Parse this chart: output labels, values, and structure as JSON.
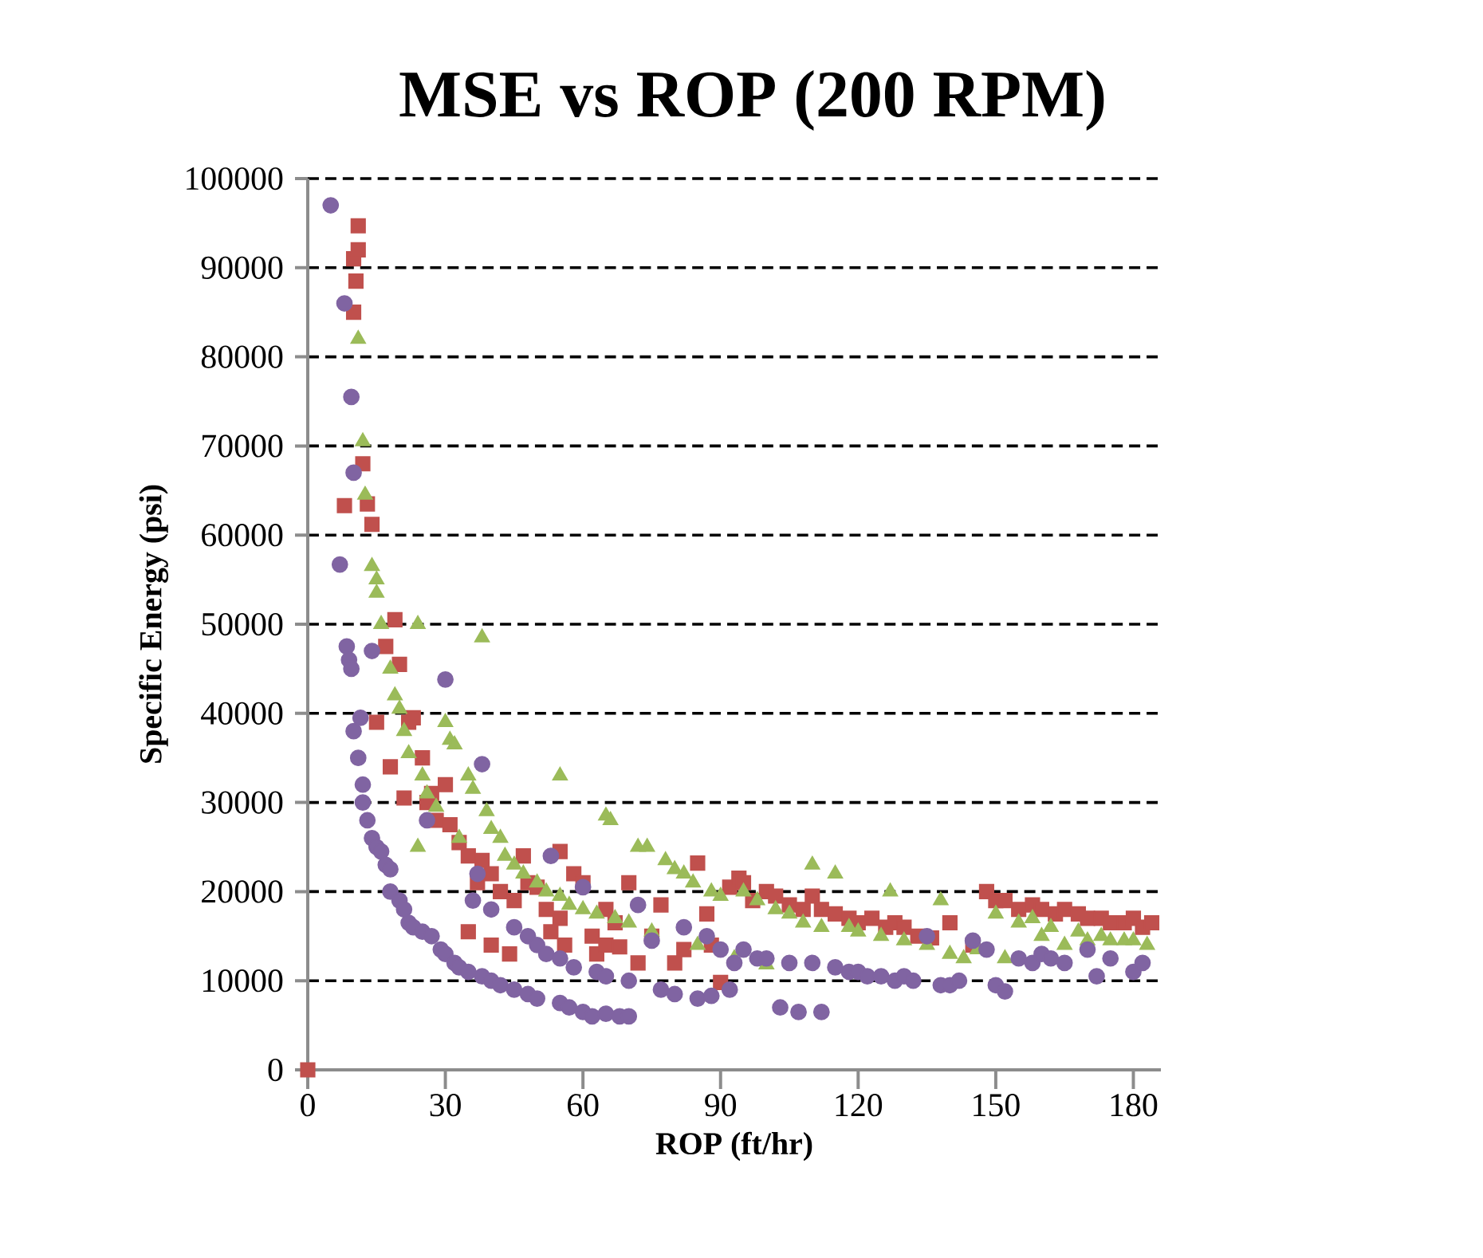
{
  "chart_data": {
    "type": "scatter",
    "title": "MSE vs ROP (200 RPM)",
    "xlabel": "ROP (ft/hr)",
    "ylabel": "Specific Energy (psi)",
    "xlim": [
      0,
      186
    ],
    "xticks": [
      0,
      30,
      60,
      90,
      120,
      150,
      180
    ],
    "ylim": [
      0,
      100000
    ],
    "yticks": [
      0,
      10000,
      20000,
      30000,
      40000,
      50000,
      60000,
      70000,
      80000,
      90000,
      100000
    ],
    "grid": "y",
    "series": [
      {
        "color": "#c0504d",
        "marker": "square",
        "x": [
          0,
          8,
          10,
          10.5,
          10,
          11,
          11,
          12,
          13,
          14,
          15,
          17,
          18,
          19,
          20,
          21,
          22,
          23,
          25,
          26,
          27,
          28,
          30,
          31,
          33,
          35,
          35,
          37,
          38,
          40,
          40,
          42,
          44,
          45,
          47,
          48,
          50,
          52,
          53,
          55,
          55,
          56,
          58,
          60,
          62,
          63,
          65,
          65,
          67,
          68,
          70,
          72,
          75,
          77,
          80,
          82,
          85,
          87,
          88,
          90,
          92,
          94,
          95,
          97,
          100,
          102,
          105,
          108,
          110,
          112,
          115,
          118,
          120,
          123,
          126,
          128,
          130,
          133,
          136,
          140,
          145,
          148,
          150,
          152,
          155,
          158,
          160,
          163,
          165,
          168,
          170,
          173,
          175,
          178,
          180,
          182,
          184
        ],
        "values": [
          0,
          63300,
          91000,
          88500,
          85000,
          92000,
          94700,
          68000,
          63500,
          61200,
          39000,
          47500,
          34000,
          50500,
          45500,
          30500,
          39000,
          39500,
          35000,
          30000,
          31000,
          28000,
          32000,
          27500,
          25500,
          24000,
          15500,
          21000,
          23500,
          22000,
          14000,
          20000,
          13000,
          19000,
          24000,
          21000,
          20500,
          18000,
          15500,
          24500,
          17000,
          14000,
          22000,
          21000,
          15000,
          13000,
          14000,
          18000,
          16500,
          13800,
          21000,
          12000,
          15000,
          18500,
          12000,
          13500,
          23200,
          17500,
          14000,
          9800,
          20500,
          21500,
          21000,
          19000,
          20000,
          19500,
          18500,
          18000,
          19500,
          18000,
          17500,
          17000,
          16500,
          17000,
          16000,
          16500,
          16000,
          15000,
          14800,
          16500,
          14000,
          20000,
          19000,
          19000,
          18000,
          18500,
          18000,
          17500,
          18000,
          17500,
          17000,
          17000,
          16500,
          16500,
          17000,
          16000,
          16500
        ]
      },
      {
        "color": "#9bbb59",
        "marker": "triangle",
        "x": [
          11,
          12,
          12.5,
          14,
          15,
          15,
          16,
          18,
          19,
          20,
          21,
          22,
          24,
          24,
          25,
          26,
          28,
          30,
          31,
          32,
          33,
          35,
          36,
          38,
          39,
          40,
          42,
          43,
          45,
          47,
          50,
          52,
          55,
          55,
          57,
          60,
          63,
          65,
          66,
          67,
          70,
          72,
          74,
          75,
          78,
          80,
          82,
          84,
          85,
          88,
          90,
          93,
          95,
          98,
          100,
          102,
          105,
          108,
          110,
          112,
          115,
          118,
          120,
          125,
          127,
          130,
          135,
          138,
          140,
          143,
          146,
          150,
          152,
          155,
          158,
          160,
          162,
          165,
          168,
          170,
          173,
          175,
          178,
          180,
          183
        ],
        "values": [
          82000,
          70500,
          64500,
          56500,
          55000,
          53500,
          50000,
          45000,
          42000,
          40500,
          38000,
          35500,
          50000,
          25000,
          33000,
          31000,
          29500,
          39000,
          37000,
          36500,
          26000,
          33000,
          31500,
          48500,
          29000,
          27000,
          26000,
          24000,
          23000,
          22000,
          21000,
          20000,
          33000,
          19500,
          18500,
          18000,
          17500,
          28500,
          28000,
          17000,
          16500,
          25000,
          25000,
          15500,
          23500,
          22500,
          22000,
          21000,
          14000,
          20000,
          19500,
          12500,
          20000,
          19000,
          11800,
          18000,
          17500,
          16500,
          23000,
          16000,
          22000,
          16000,
          15500,
          15000,
          20000,
          14500,
          14000,
          19000,
          13000,
          12500,
          13500,
          17500,
          12500,
          16500,
          17000,
          15000,
          16000,
          14000,
          15500,
          14500,
          15000,
          14500,
          14500,
          14500,
          14000
        ]
      },
      {
        "color": "#8064a2",
        "marker": "circle",
        "x": [
          5,
          7,
          8,
          8.5,
          9,
          9.5,
          9.5,
          10,
          10,
          11,
          11.5,
          12,
          12,
          13,
          14,
          14,
          15,
          16,
          17,
          18,
          18,
          20,
          21,
          22,
          23,
          25,
          26,
          27,
          29,
          30,
          30,
          32,
          33,
          35,
          36,
          37,
          38,
          38,
          40,
          40,
          42,
          45,
          45,
          48,
          48,
          50,
          50,
          52,
          53,
          55,
          55,
          57,
          58,
          60,
          60,
          62,
          63,
          65,
          65,
          68,
          70,
          70,
          72,
          75,
          77,
          80,
          82,
          85,
          87,
          88,
          90,
          92,
          93,
          95,
          98,
          100,
          103,
          105,
          107,
          110,
          112,
          115,
          118,
          120,
          122,
          125,
          128,
          130,
          132,
          135,
          138,
          140,
          142,
          145,
          148,
          150,
          152,
          155,
          158,
          160,
          162,
          165,
          170,
          172,
          175,
          180,
          182
        ],
        "values": [
          97000,
          56700,
          86000,
          47500,
          46000,
          45000,
          75500,
          67000,
          38000,
          35000,
          39500,
          32000,
          30000,
          28000,
          47000,
          26000,
          25000,
          24500,
          23000,
          22500,
          20000,
          19000,
          18000,
          16500,
          16000,
          15500,
          28000,
          15000,
          13500,
          13000,
          43800,
          12000,
          11500,
          11000,
          19000,
          22000,
          34300,
          10500,
          18000,
          10000,
          9500,
          9000,
          16000,
          8500,
          15000,
          14000,
          8000,
          13000,
          24000,
          7500,
          12500,
          7000,
          11500,
          6500,
          20500,
          6000,
          11000,
          6300,
          10500,
          6000,
          6000,
          10000,
          18500,
          14500,
          9000,
          8500,
          16000,
          8000,
          15000,
          8300,
          13500,
          9000,
          12000,
          13500,
          12500,
          12500,
          7000,
          12000,
          6500,
          12000,
          6500,
          11500,
          11000,
          11000,
          10500,
          10500,
          10000,
          10500,
          10000,
          15000,
          9500,
          9500,
          10000,
          14500,
          13500,
          9500,
          8800,
          12500,
          12000,
          13000,
          12500,
          12000,
          13500,
          10500,
          12500,
          11000,
          12000
        ]
      }
    ]
  }
}
